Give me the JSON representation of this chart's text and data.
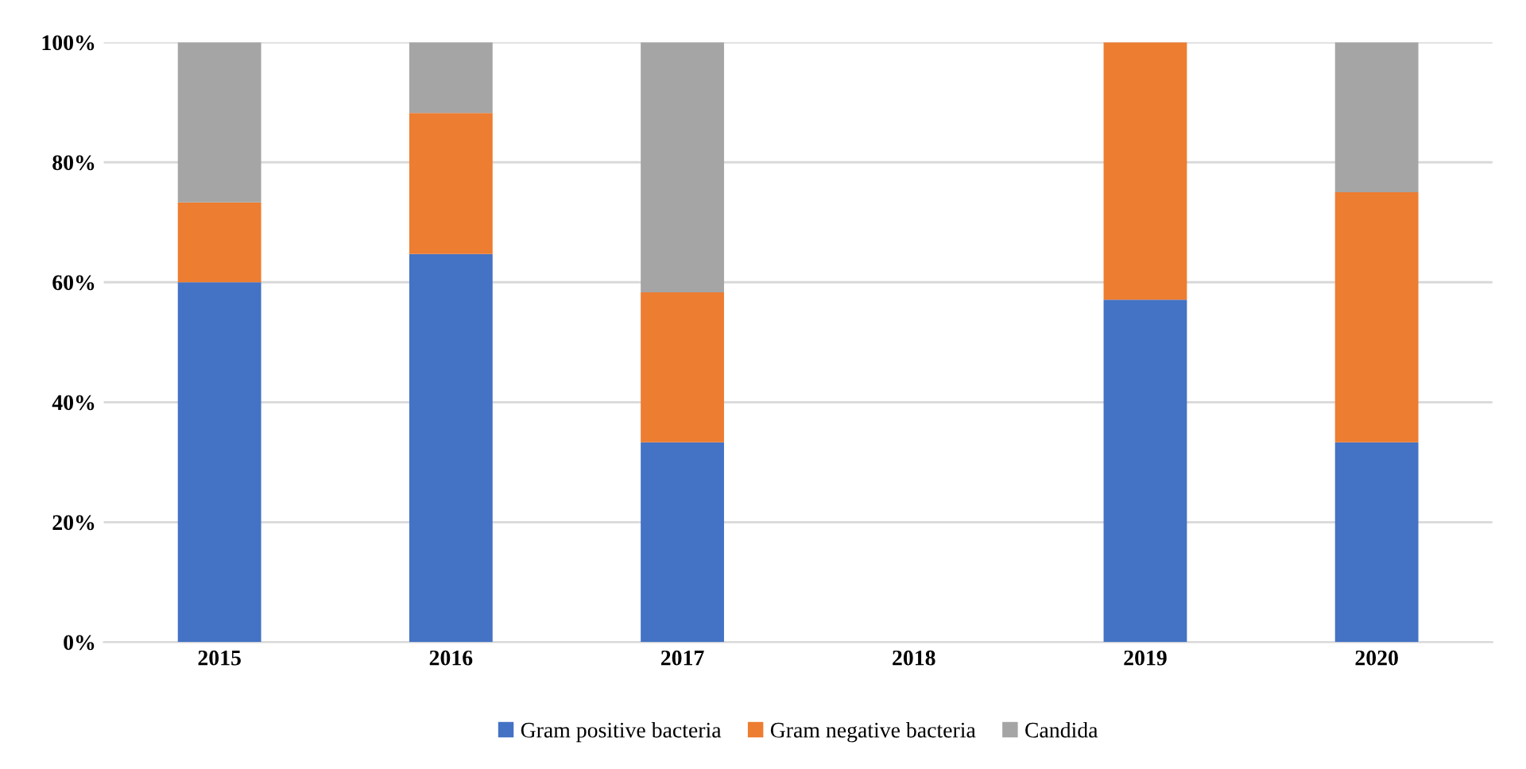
{
  "chart_data": {
    "type": "bar",
    "stacked": true,
    "categories": [
      "2015",
      "2016",
      "2017",
      "2018",
      "2019",
      "2020"
    ],
    "series": [
      {
        "name": "Gram positive bacteria",
        "color": "#4472c4",
        "values": [
          60,
          64.7,
          33.3,
          0,
          57.1,
          33.3
        ]
      },
      {
        "name": "Gram negative bacteria",
        "color": "#ed7d31",
        "values": [
          13.3,
          23.5,
          25,
          0,
          42.9,
          41.7
        ]
      },
      {
        "name": "Candida",
        "color": "#a5a5a5",
        "values": [
          26.7,
          11.8,
          41.7,
          0,
          0,
          25
        ]
      }
    ],
    "ylim": [
      0,
      100
    ],
    "yticks": [
      {
        "value": 0,
        "label": "0%"
      },
      {
        "value": 20,
        "label": "20%"
      },
      {
        "value": 40,
        "label": "40%"
      },
      {
        "value": 60,
        "label": "60%"
      },
      {
        "value": 80,
        "label": "80%"
      },
      {
        "value": 100,
        "label": "100%"
      }
    ],
    "grid": "y",
    "legend": "bottom"
  }
}
